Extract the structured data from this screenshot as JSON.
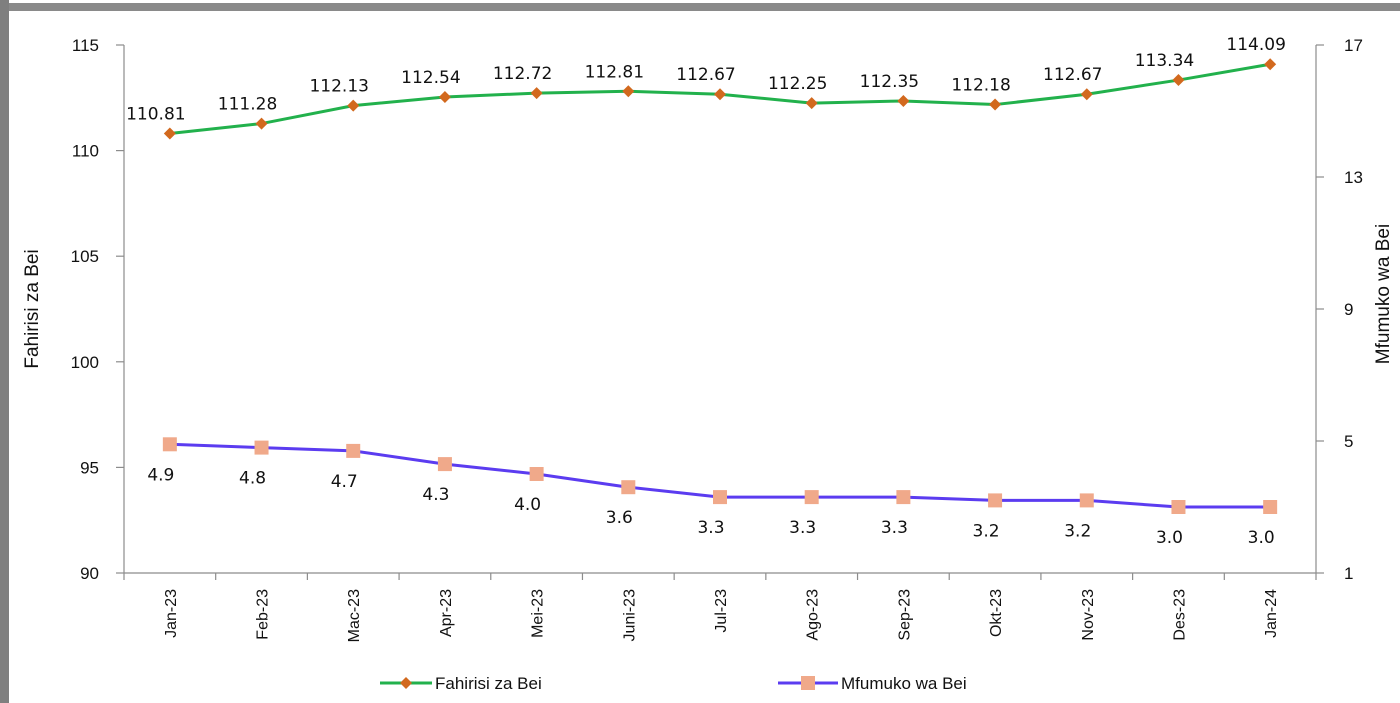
{
  "caption": "",
  "chart_data": {
    "type": "line",
    "categories": [
      "Jan-23",
      "Feb-23",
      "Mac-23",
      "Apr-23",
      "Mei-23",
      "Juni-23",
      "Jul-23",
      "Ago-23",
      "Sep-23",
      "Okt-23",
      "Nov-23",
      "Des-23",
      "Jan-24"
    ],
    "series": [
      {
        "name": "Fahirisi za Bei",
        "axis": "left",
        "color": "#22b14c",
        "marker": "diamond",
        "marker_color": "#d2691e",
        "values": [
          110.81,
          111.28,
          112.13,
          112.54,
          112.72,
          112.81,
          112.67,
          112.25,
          112.35,
          112.18,
          112.67,
          113.34,
          114.09
        ],
        "labels": [
          "110.81",
          "111.28",
          "112.13",
          "112.54",
          "112.72",
          "112.81",
          "112.67",
          "112.25",
          "112.35",
          "112.18",
          "112.67",
          "113.34",
          "114.09"
        ]
      },
      {
        "name": "Mfumuko wa Bei",
        "axis": "right",
        "color": "#5b3cf0",
        "marker": "square",
        "marker_color": "#f0a98a",
        "values": [
          4.9,
          4.8,
          4.7,
          4.3,
          4.0,
          3.6,
          3.3,
          3.3,
          3.3,
          3.2,
          3.2,
          3.0,
          3.0
        ],
        "labels": [
          "4.9",
          "4.8",
          "4.7",
          "4.3",
          "4.0",
          "3.6",
          "3.3",
          "3.3",
          "3.3",
          "3.2",
          "3.2",
          "3.0",
          "3.0"
        ]
      }
    ],
    "y_left": {
      "label": "Fahirisi  za  Bei",
      "ylim": [
        90,
        115
      ],
      "ticks": [
        "90",
        "95",
        "100",
        "105",
        "110",
        "115"
      ]
    },
    "y_right": {
      "label": "Mfumuko  wa  Bei",
      "ylim": [
        1,
        17
      ],
      "ticks": [
        "1",
        "5",
        "9",
        "13",
        "17"
      ]
    },
    "grid": false,
    "legend_position": "bottom"
  }
}
